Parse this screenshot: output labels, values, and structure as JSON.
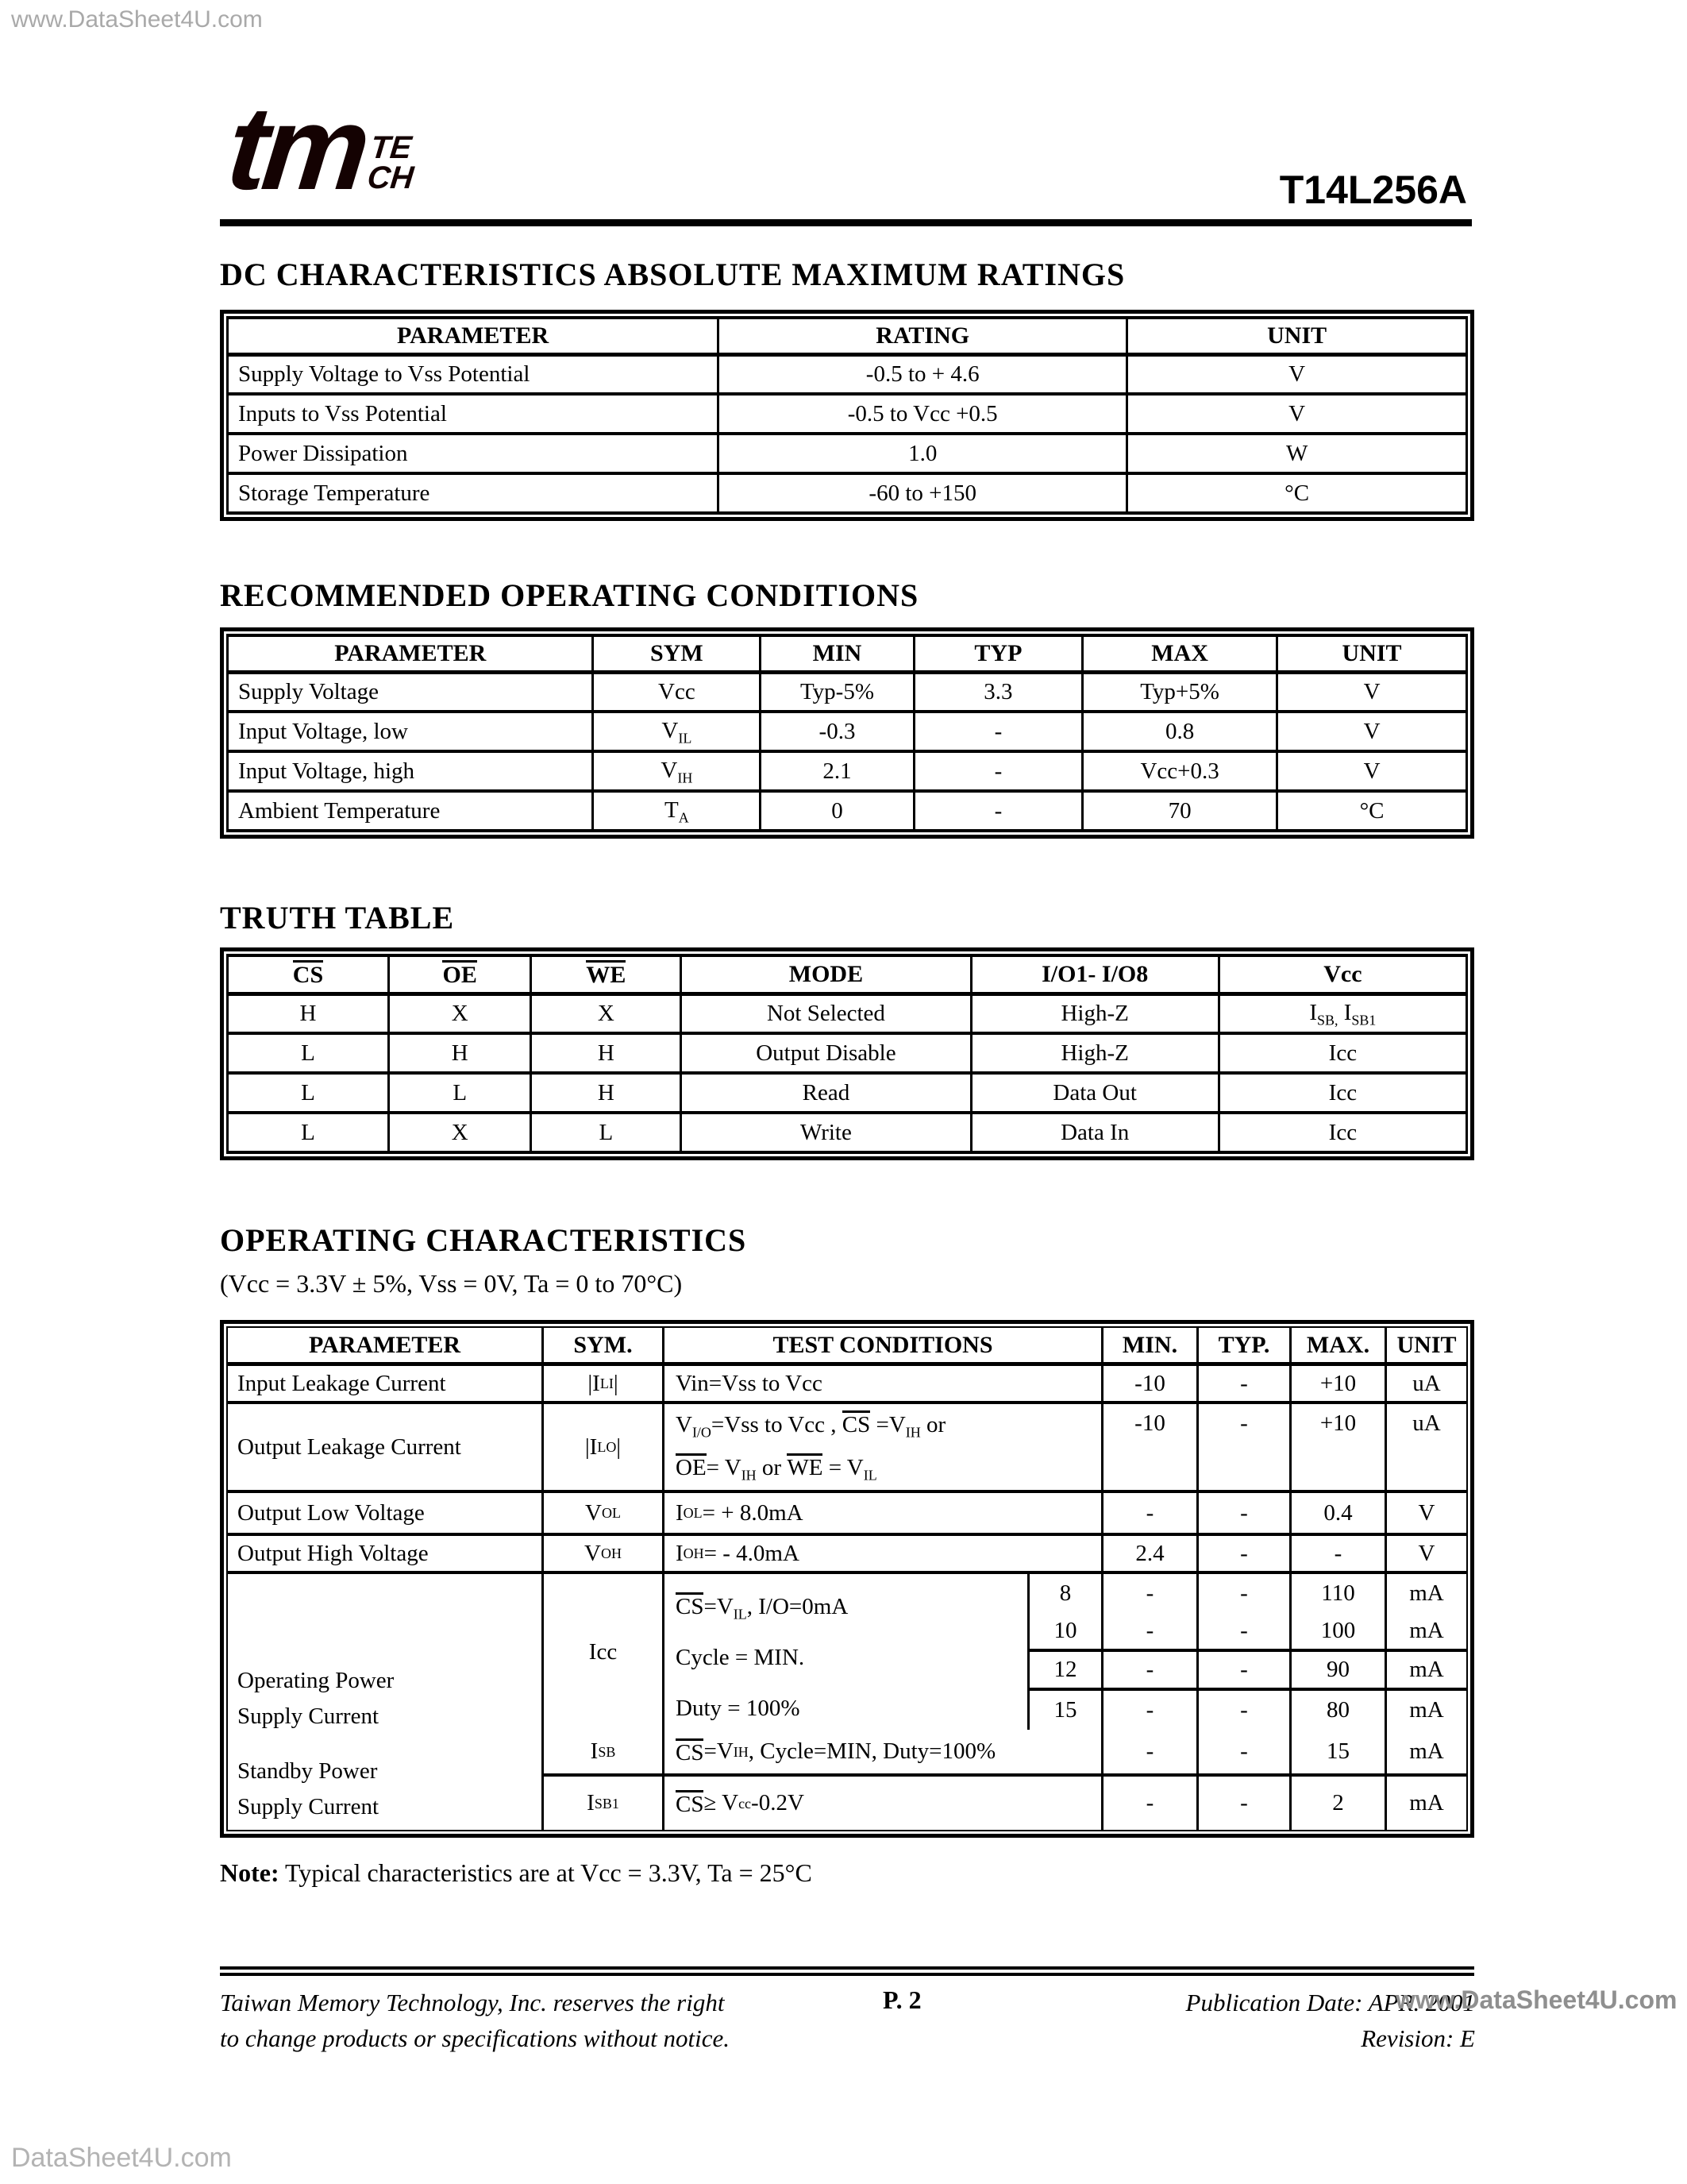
{
  "colors": {
    "ink": "#000000",
    "logo_ink": "#140202",
    "watermark_gray": "#a9a9a9"
  },
  "watermarks": {
    "top": "www.DataSheet4U.com",
    "bottom": "DataSheet4U.com",
    "footer_overlay": "www.DataSheet4U.com"
  },
  "header": {
    "logo_tm": "tm",
    "logo_te": "TE",
    "logo_ch": "CH",
    "part_number": "T14L256A"
  },
  "sections": {
    "dc": {
      "title": "DC CHARACTERISTICS ABSOLUTE MAXIMUM RATINGS",
      "columns": [
        "PARAMETER",
        "RATING",
        "UNIT"
      ],
      "rows": [
        {
          "parameter": "Supply Voltage to Vss Potential",
          "rating": "-0.5 to + 4.6",
          "unit": "V"
        },
        {
          "parameter": "Inputs    to Vss Potential",
          "rating": "-0.5 to Vcc +0.5",
          "unit": "V"
        },
        {
          "parameter": "Power Dissipation",
          "rating": "1.0",
          "unit": "W"
        },
        {
          "parameter": "Storage Temperature",
          "rating": "-60 to +150",
          "unit": "°C"
        }
      ]
    },
    "roc": {
      "title": "RECOMMENDED OPERATING CONDITIONS",
      "columns": [
        "PARAMETER",
        "SYM",
        "MIN",
        "TYP",
        "MAX",
        "UNIT"
      ],
      "rows": [
        {
          "parameter": "Supply Voltage",
          "sym": [
            {
              "t": "Vcc"
            }
          ],
          "min": "Typ-5%",
          "typ": "3.3",
          "max": "Typ+5%",
          "unit": "V"
        },
        {
          "parameter": "Input Voltage, low",
          "sym": [
            {
              "t": "V"
            },
            {
              "s": "IL"
            }
          ],
          "min": "-0.3",
          "typ": "-",
          "max": "0.8",
          "unit": "V"
        },
        {
          "parameter": "Input Voltage, high",
          "sym": [
            {
              "t": "V"
            },
            {
              "s": "IH"
            }
          ],
          "min": "2.1",
          "typ": "-",
          "max": "Vcc+0.3",
          "unit": "V"
        },
        {
          "parameter": "Ambient Temperature",
          "sym": [
            {
              "t": "T"
            },
            {
              "s": "A"
            }
          ],
          "min": "0",
          "typ": "-",
          "max": "70",
          "unit": "°C"
        }
      ]
    },
    "truth": {
      "title": "TRUTH TABLE",
      "columns": [
        [
          {
            "o": "CS"
          }
        ],
        [
          {
            "o": "OE"
          }
        ],
        [
          {
            "o": "WE"
          }
        ],
        [
          {
            "t": "MODE"
          }
        ],
        [
          {
            "t": "I/O1- I/O8"
          }
        ],
        [
          {
            "t": "Vcc"
          }
        ]
      ],
      "rows": [
        {
          "cs": "H",
          "oe": "X",
          "we": "X",
          "mode": "Not Selected",
          "io": "High-Z",
          "vcc": [
            {
              "t": "I"
            },
            {
              "s": "SB,"
            },
            {
              "t": " I"
            },
            {
              "s": "SB1"
            }
          ]
        },
        {
          "cs": "L",
          "oe": "H",
          "we": "H",
          "mode": "Output Disable",
          "io": "High-Z",
          "vcc": [
            {
              "t": "Icc"
            }
          ]
        },
        {
          "cs": "L",
          "oe": "L",
          "we": "H",
          "mode": "Read",
          "io": "Data Out",
          "vcc": [
            {
              "t": "Icc"
            }
          ]
        },
        {
          "cs": "L",
          "oe": "X",
          "we": "L",
          "mode": "Write",
          "io": "Data In",
          "vcc": [
            {
              "t": "Icc"
            }
          ]
        }
      ]
    },
    "opchar": {
      "title": "OPERATING CHARACTERISTICS",
      "subtitle": "(Vcc = 3.3V ± 5%, Vss = 0V, Ta = 0 to 70°C)",
      "columns": [
        "PARAMETER",
        "SYM.",
        "TEST CONDITIONS",
        "MIN.",
        "TYP.",
        "MAX.",
        "UNIT"
      ],
      "r1": {
        "parameter": "Input Leakage Current",
        "sym": [
          {
            "t": "|I"
          },
          {
            "s": "LI"
          },
          {
            "t": "|"
          }
        ],
        "tc": [
          {
            "t": "Vin=Vss to Vcc"
          }
        ],
        "min": "-10",
        "typ": "-",
        "max": "+10",
        "unit": "uA"
      },
      "r2": {
        "parameter": "Output Leakage Current",
        "sym": [
          {
            "t": "|I"
          },
          {
            "s": "LO"
          },
          {
            "t": "|"
          }
        ],
        "tc1": [
          {
            "t": "V"
          },
          {
            "s": "I/O"
          },
          {
            "t": "=Vss to Vcc ,  "
          },
          {
            "o": "CS"
          },
          {
            "t": " ="
          },
          {
            "t": "V"
          },
          {
            "s": "IH"
          },
          {
            "t": " or"
          }
        ],
        "tc2": [
          {
            "o": "OE"
          },
          {
            "t": "=  V"
          },
          {
            "s": "IH"
          },
          {
            "t": " or  "
          },
          {
            "o": "WE"
          },
          {
            "t": "  =  V"
          },
          {
            "s": "IL"
          }
        ],
        "min": "-10",
        "typ": "-",
        "max": "+10",
        "unit": "uA"
      },
      "r3": {
        "parameter": "Output Low Voltage",
        "sym": [
          {
            "t": "V"
          },
          {
            "s": "OL"
          }
        ],
        "tc": [
          {
            "t": "I"
          },
          {
            "s": "OL"
          },
          {
            "t": "= + 8.0mA"
          }
        ],
        "min": "-",
        "typ": "-",
        "max": "0.4",
        "unit": "V"
      },
      "r4": {
        "parameter": "Output High Voltage",
        "sym": [
          {
            "t": "V"
          },
          {
            "s": "OH"
          }
        ],
        "tc": [
          {
            "t": "I"
          },
          {
            "s": "OH"
          },
          {
            "t": "= - 4.0mA"
          }
        ],
        "min": "2.4",
        "typ": "-",
        "max": "-",
        "unit": "V"
      },
      "op_param_line1": "Operating Power",
      "op_param_line2": "Supply Current",
      "sb_param_line1": "Standby Power",
      "sb_param_line2": "Supply Current",
      "icc_sym": "Icc",
      "icc_tc1": [
        {
          "o": "CS"
        },
        {
          "t": "=V"
        },
        {
          "s": "IL"
        },
        {
          "t": ", I/O=0mA"
        }
      ],
      "icc_tc2": [
        {
          "t": "Cycle = MIN."
        }
      ],
      "icc_tc3": [
        {
          "t": "Duty = 100%"
        }
      ],
      "icc_rows": [
        {
          "speed": "8",
          "min": "-",
          "typ": "-",
          "max": "110",
          "unit": "mA"
        },
        {
          "speed": "10",
          "min": "-",
          "typ": "-",
          "max": "100",
          "unit": "mA"
        },
        {
          "speed": "12",
          "min": "-",
          "typ": "-",
          "max": "90",
          "unit": "mA"
        },
        {
          "speed": "15",
          "min": "-",
          "typ": "-",
          "max": "80",
          "unit": "mA"
        }
      ],
      "isb": {
        "sym": [
          {
            "t": "I"
          },
          {
            "s": "SB"
          }
        ],
        "tc": [
          {
            "o": "CS"
          },
          {
            "t": "=V"
          },
          {
            "s": "IH"
          },
          {
            "t": ", Cycle=MIN, Duty=100%"
          }
        ],
        "min": "-",
        "typ": "-",
        "max": "15",
        "unit": "mA"
      },
      "isbi": {
        "sym": [
          {
            "t": "I"
          },
          {
            "s": "SB1"
          }
        ],
        "tc": [
          {
            "o": "CS"
          },
          {
            "t": "  ≥  V"
          },
          {
            "s": "cc"
          },
          {
            "t": "-0.2V"
          }
        ],
        "min": "-",
        "typ": "-",
        "max": "2",
        "unit": "mA"
      },
      "note_label": "Note:",
      "note_text": " Typical characteristics are at Vcc = 3.3V, Ta = 25°C"
    }
  },
  "footer": {
    "left_line1": "Taiwan Memory Technology, Inc. reserves the right",
    "left_line2": "to change products or specifications without notice.",
    "page": "P. 2",
    "right_line1": "Publication Date: APR. 2001",
    "right_line2": "Revision: E"
  }
}
